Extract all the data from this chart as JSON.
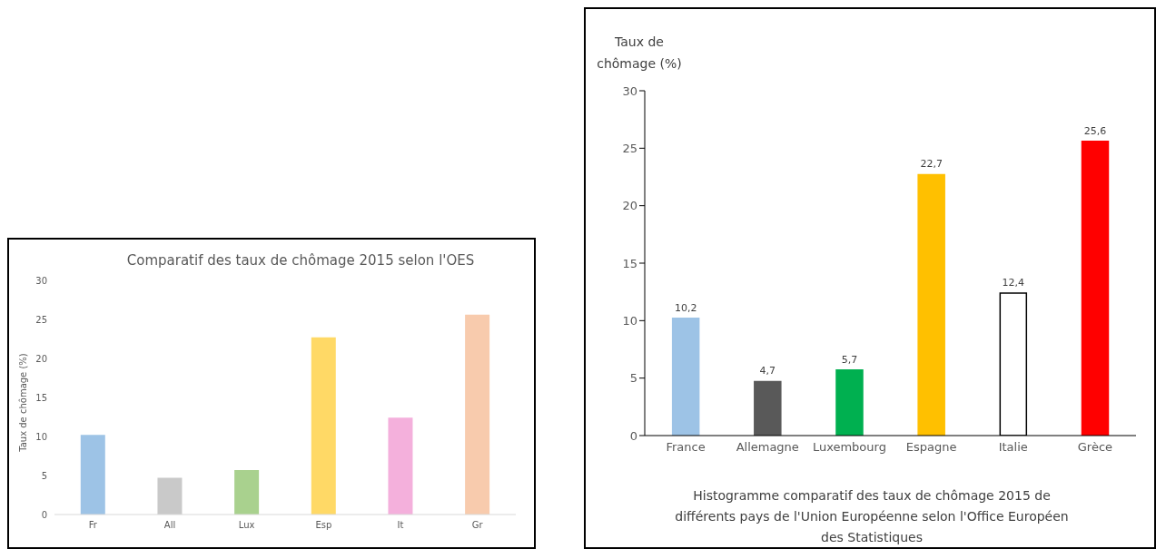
{
  "chart_data": [
    {
      "type": "bar",
      "title": "Comparatif des taux de chômage 2015 selon l'OES",
      "ylabel": "Taux de chômage (%)",
      "categories": [
        "Fr",
        "All",
        "Lux",
        "Esp",
        "It",
        "Gr"
      ],
      "values": [
        10.2,
        4.7,
        5.7,
        22.7,
        12.4,
        25.6
      ],
      "colors": [
        "#9dc3e6",
        "#c9c9c9",
        "#a9d18e",
        "#ffd966",
        "#f4b0dc",
        "#f8cbad"
      ],
      "ylim": [
        0,
        30
      ],
      "yticks": [
        0,
        5,
        10,
        15,
        20,
        25,
        30
      ],
      "grid": false
    },
    {
      "type": "bar",
      "ylabel": "Taux de chômage (%)",
      "categories": [
        "France",
        "Allemagne",
        "Luxembourg",
        "Espagne",
        "Italie",
        "Grèce"
      ],
      "values": [
        10.2,
        4.7,
        5.7,
        22.7,
        12.4,
        25.6
      ],
      "value_labels": [
        "10,2",
        "4,7",
        "5,7",
        "22,7",
        "12,4",
        "25,6"
      ],
      "colors": [
        "#9dc3e6",
        "#595959",
        "#00b050",
        "#ffc000",
        "#ffffff",
        "#ff0000"
      ],
      "ylim": [
        0,
        30
      ],
      "yticks": [
        0,
        5,
        10,
        15,
        20,
        25,
        30
      ],
      "grid": false,
      "annotations": [
        "Histogramme comparatif des taux de chômage 2015 de différents pays de l'Union Européenne selon l'Office Européen des Statistiques"
      ]
    }
  ]
}
